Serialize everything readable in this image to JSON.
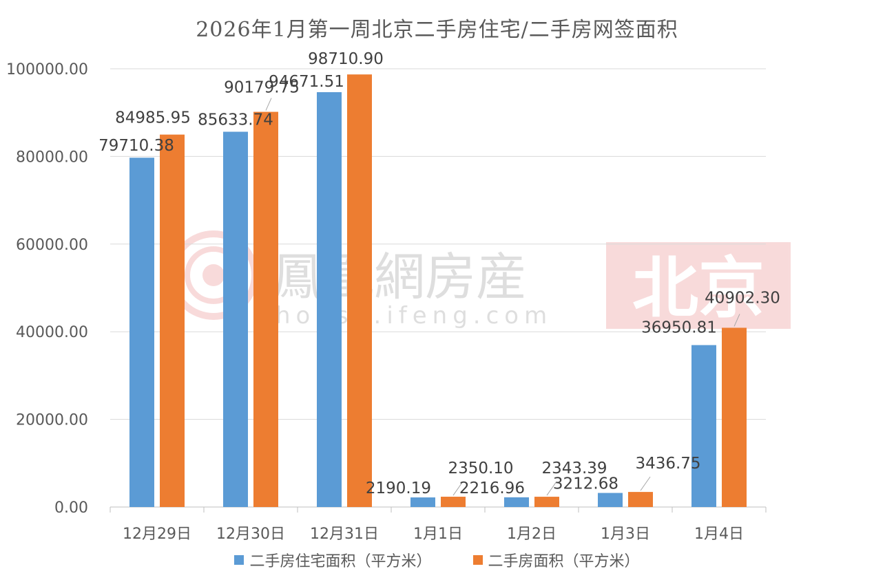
{
  "chart_data": {
    "type": "bar",
    "title": "2026年1月第一周北京二手房住宅/二手房网签面积",
    "categories": [
      "12月29日",
      "12月30日",
      "12月31日",
      "1月1日",
      "1月2日",
      "1月3日",
      "1月4日"
    ],
    "series": [
      {
        "name": "二手房住宅面积（平方米）",
        "color": "#5B9BD5",
        "values": [
          79710.38,
          85633.74,
          94671.51,
          2190.19,
          2216.96,
          3212.68,
          36950.81
        ],
        "labels": [
          "79710.38",
          "85633.74",
          "94671.51",
          "2190.19",
          "2216.96",
          "3212.68",
          "36950.81"
        ]
      },
      {
        "name": "二手房面积（平方米）",
        "color": "#ED7D31",
        "values": [
          84985.95,
          90179.75,
          98710.9,
          2350.1,
          2343.39,
          3436.75,
          40902.3
        ],
        "labels": [
          "84985.95",
          "90179.75",
          "98710.90",
          "2350.10",
          "2343.39",
          "3436.75",
          "40902.30"
        ]
      }
    ],
    "ylim": [
      0,
      100000
    ],
    "yticks": [
      "0.00",
      "20000.00",
      "40000.00",
      "60000.00",
      "80000.00",
      "100000.00"
    ],
    "grid": true,
    "legend_position": "bottom"
  },
  "watermark": {
    "brand": "鳳凰網房産",
    "url": "house.ifeng.com",
    "city": "北京"
  }
}
